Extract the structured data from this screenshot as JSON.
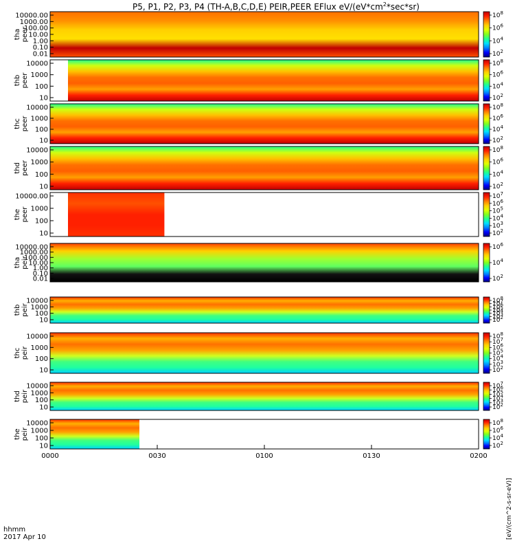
{
  "chart_data": {
    "type": "heatmap",
    "title": "P5, P1, P2, P3, P4 (TH-A,B,C,D,E) PEIR,PEER EFlux eV/(eV*cm",
    "title_sup": "2",
    "title_end": "*sec*sr)",
    "x_time_label": "hhmm",
    "x_date_label": "2017 Apr 10",
    "x_ticks": [
      "0000",
      "0030",
      "0100",
      "0130",
      "0200"
    ],
    "x_range_minutes": [
      0,
      120
    ],
    "colorbar_title": "[eV/(cm^2-s-sr-eV)]",
    "colormap": [
      "#00007f",
      "#0000ff",
      "#0080ff",
      "#00e0ff",
      "#20ff90",
      "#80ff20",
      "#e0ff00",
      "#ffd000",
      "#ff8000",
      "#ff2000",
      "#c00000"
    ],
    "panels": [
      {
        "probe": "tha",
        "species": "peer",
        "y_ticks": [
          "10000.00",
          "1000.00",
          "100.00",
          "10.00",
          "1.00",
          "0.10",
          "0.01"
        ],
        "colorbar_ticks": [
          "10^8",
          "10^6",
          "10^4",
          "10^2"
        ],
        "data_start_minute": 0,
        "data_end_minute": 120
      },
      {
        "probe": "thb",
        "species": "peer",
        "y_ticks": [
          "10000",
          "1000",
          "100",
          "10"
        ],
        "colorbar_ticks": [
          "10^8",
          "10^6",
          "10^4",
          "10^2"
        ],
        "data_start_minute": 5,
        "data_end_minute": 120
      },
      {
        "probe": "thc",
        "species": "peer",
        "y_ticks": [
          "10000",
          "1000",
          "100",
          "10"
        ],
        "colorbar_ticks": [
          "10^8",
          "10^6",
          "10^4",
          "10^2"
        ],
        "data_start_minute": 0,
        "data_end_minute": 120
      },
      {
        "probe": "thd",
        "species": "peer",
        "y_ticks": [
          "10000",
          "1000",
          "100",
          "10"
        ],
        "colorbar_ticks": [
          "10^8",
          "10^6",
          "10^4",
          "10^2"
        ],
        "data_start_minute": 0,
        "data_end_minute": 120
      },
      {
        "probe": "the",
        "species": "peer",
        "y_ticks": [
          "10000.00",
          "1000",
          "100",
          "10"
        ],
        "colorbar_ticks": [
          "10^7",
          "10^6",
          "10^5",
          "10^4",
          "10^3",
          "10^2"
        ],
        "data_start_minute": 5,
        "data_end_minute": 32
      },
      {
        "probe": "tha",
        "species": "peir",
        "y_ticks": [
          "10000.00",
          "1000.00",
          "100.00",
          "10.00",
          "1.00",
          "0.10",
          "0.01"
        ],
        "colorbar_ticks": [
          "10^6",
          "10^4",
          "10^2"
        ],
        "data_start_minute": 0,
        "data_end_minute": 120
      },
      {
        "probe": "thb",
        "species": "peir",
        "y_ticks": [
          "10000",
          "1000",
          "100",
          "10"
        ],
        "colorbar_ticks": [
          "10^8",
          "10^7",
          "10^6",
          "10^5",
          "10^4",
          "10^3",
          "10^2"
        ],
        "data_start_minute": 0,
        "data_end_minute": 120
      },
      {
        "probe": "thc",
        "species": "peir",
        "y_ticks": [
          "10000",
          "1000",
          "100",
          "10"
        ],
        "colorbar_ticks": [
          "10^8",
          "10^7",
          "10^6",
          "10^5",
          "10^4",
          "10^3",
          "10^2"
        ],
        "data_start_minute": 0,
        "data_end_minute": 120
      },
      {
        "probe": "thd",
        "species": "peir",
        "y_ticks": [
          "10000",
          "1000",
          "100",
          "10"
        ],
        "colorbar_ticks": [
          "10^7",
          "10^6",
          "10^5",
          "10^4",
          "10^3",
          "10^2"
        ],
        "data_start_minute": 0,
        "data_end_minute": 120
      },
      {
        "probe": "the",
        "species": "peir",
        "y_ticks": [
          "10000",
          "1000",
          "100",
          "10"
        ],
        "colorbar_ticks": [
          "10^8",
          "10^6",
          "10^4",
          "10^2"
        ],
        "data_start_minute": 0,
        "data_end_minute": 25
      }
    ]
  }
}
